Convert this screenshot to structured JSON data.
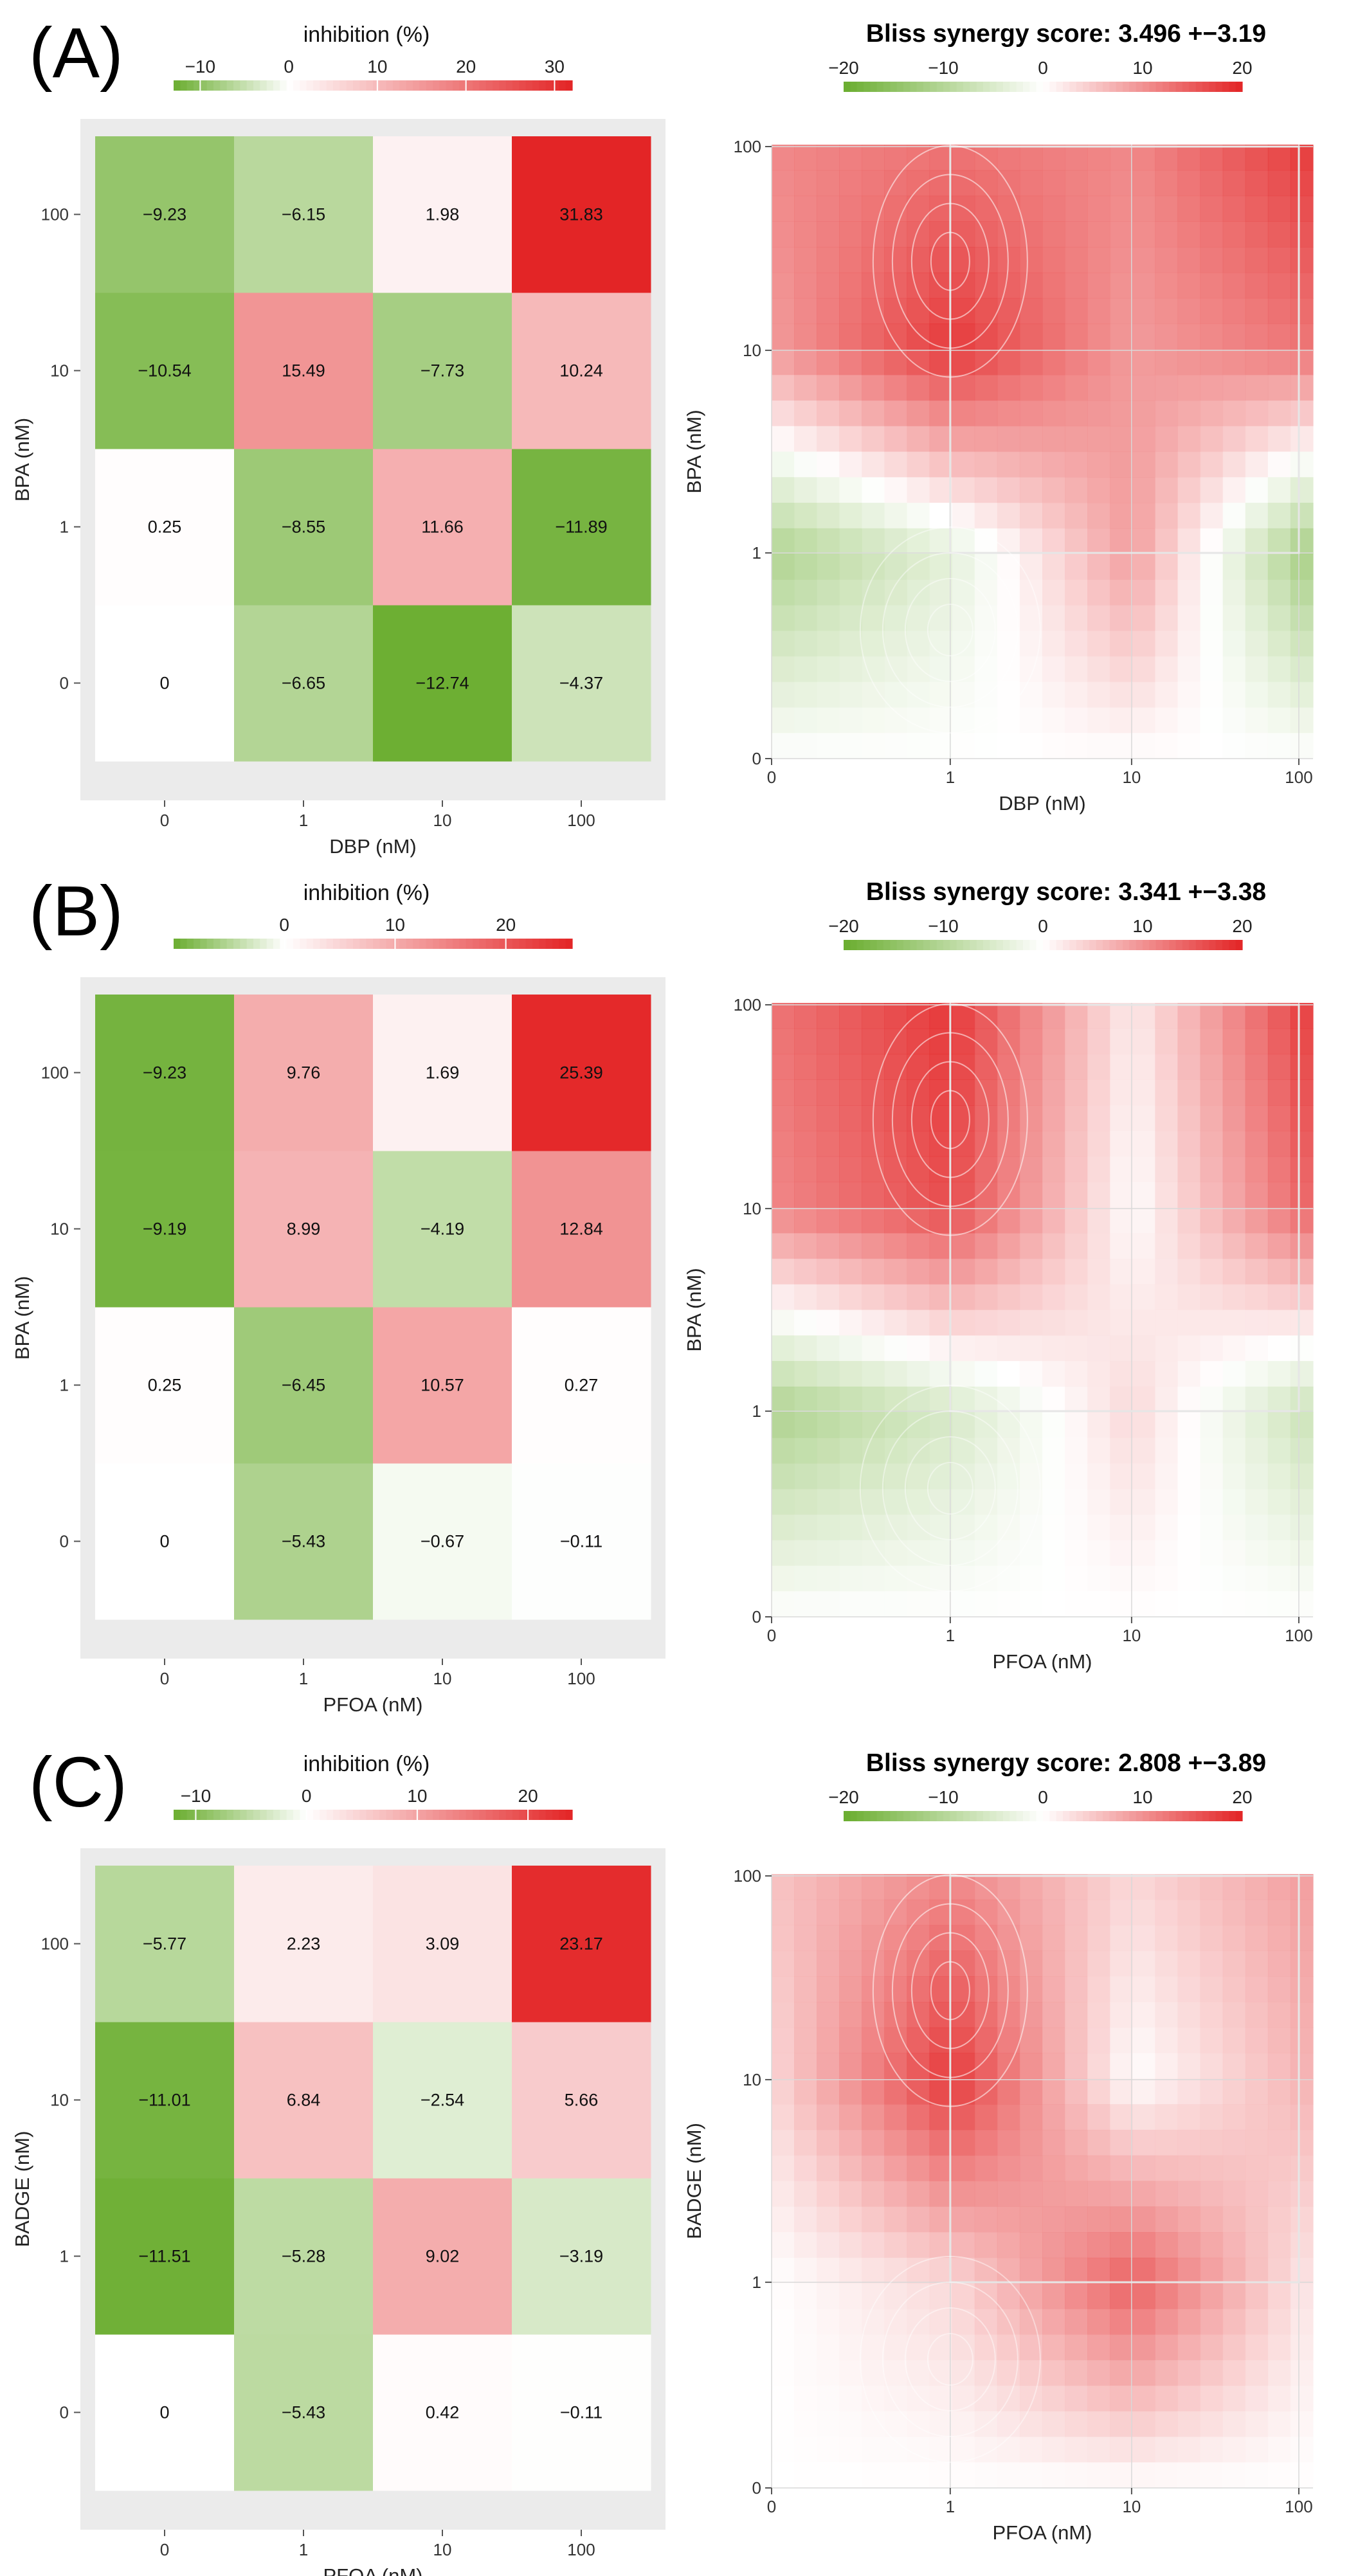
{
  "figure": {
    "panels": [
      "(A)",
      "(B)",
      "(C)"
    ]
  },
  "colors": {
    "negative": "#6aad2f",
    "zero": "#ffffff",
    "positive": "#e32425",
    "panel_background": "#ebebeb",
    "contour": "#ffffff"
  },
  "chart_data": [
    {
      "type": "heatmap",
      "panel": "(A)",
      "legend_title": "inhibition (%)",
      "legend_ticks": [
        "−10",
        "0",
        "10",
        "20",
        "30"
      ],
      "legend_range": [
        -13,
        32
      ],
      "xlabel": "DBP (nM)",
      "ylabel": "BPA (nM)",
      "x_categories": [
        "0",
        "1",
        "10",
        "100"
      ],
      "y_categories": [
        "0",
        "1",
        "10",
        "100"
      ],
      "values": [
        [
          0,
          -6.65,
          -12.74,
          -4.37
        ],
        [
          0.25,
          -8.55,
          11.66,
          -11.89
        ],
        [
          -10.54,
          15.49,
          -7.73,
          10.24
        ],
        [
          -9.23,
          -6.15,
          1.98,
          31.83
        ]
      ],
      "cell_labels": [
        [
          "0",
          "−6.65",
          "−12.74",
          "−4.37"
        ],
        [
          "0.25",
          "−8.55",
          "11.66",
          "−11.89"
        ],
        [
          "−10.54",
          "15.49",
          "−7.73",
          "10.24"
        ],
        [
          "−9.23",
          "−6.15",
          "1.98",
          "31.83"
        ]
      ],
      "color_scale": {
        "min": -13,
        "max": 32
      }
    },
    {
      "type": "heatmap",
      "panel": "(A)",
      "title": "Bliss synergy score: 3.496 +−3.19",
      "legend_ticks": [
        "−20",
        "−10",
        "0",
        "10",
        "20"
      ],
      "legend_range": [
        -20,
        20
      ],
      "xlabel": "DBP (nM)",
      "ylabel": "BPA (nM)",
      "x_ticks": [
        "0",
        "1",
        "10",
        "100"
      ],
      "y_ticks": [
        "0",
        "1",
        "10",
        "100"
      ],
      "synergy_grid": [
        [
          0,
          0,
          0,
          0
        ],
        [
          -12,
          -4,
          10,
          -14
        ],
        [
          10,
          20,
          10,
          14
        ],
        [
          12,
          14,
          12,
          20
        ]
      ],
      "color_scale": {
        "min": -20,
        "max": 20
      }
    },
    {
      "type": "heatmap",
      "panel": "(B)",
      "legend_title": "inhibition (%)",
      "legend_ticks": [
        "0",
        "10",
        "20"
      ],
      "legend_range": [
        -10,
        26
      ],
      "xlabel": "PFOA (nM)",
      "ylabel": "BPA (nM)",
      "x_categories": [
        "0",
        "1",
        "10",
        "100"
      ],
      "y_categories": [
        "0",
        "1",
        "10",
        "100"
      ],
      "values": [
        [
          0,
          -5.43,
          -0.67,
          -0.11
        ],
        [
          0.25,
          -6.45,
          10.57,
          0.27
        ],
        [
          -9.19,
          8.99,
          -4.19,
          12.84
        ],
        [
          -9.23,
          9.76,
          1.69,
          25.39
        ]
      ],
      "cell_labels": [
        [
          "0",
          "−5.43",
          "−0.67",
          "−0.11"
        ],
        [
          "0.25",
          "−6.45",
          "10.57",
          "0.27"
        ],
        [
          "−9.19",
          "8.99",
          "−4.19",
          "12.84"
        ],
        [
          "−9.23",
          "9.76",
          "1.69",
          "25.39"
        ]
      ],
      "color_scale": {
        "min": -10,
        "max": 26
      }
    },
    {
      "type": "heatmap",
      "panel": "(B)",
      "title": "Bliss synergy score: 3.341 +−3.38",
      "legend_ticks": [
        "−20",
        "−10",
        "0",
        "10",
        "20"
      ],
      "legend_range": [
        -20,
        20
      ],
      "xlabel": "PFOA (nM)",
      "ylabel": "BPA (nM)",
      "x_ticks": [
        "0",
        "1",
        "10",
        "100"
      ],
      "y_ticks": [
        "0",
        "1",
        "10",
        "100"
      ],
      "synergy_grid": [
        [
          0,
          0,
          0,
          0
        ],
        [
          -12,
          -6,
          4,
          -8
        ],
        [
          12,
          18,
          0,
          16
        ],
        [
          14,
          20,
          2,
          20
        ]
      ],
      "color_scale": {
        "min": -20,
        "max": 20
      }
    },
    {
      "type": "heatmap",
      "panel": "(C)",
      "legend_title": "inhibition (%)",
      "legend_ticks": [
        "−10",
        "0",
        "10",
        "20"
      ],
      "legend_range": [
        -12,
        24
      ],
      "xlabel": "PFOA (nM)",
      "ylabel": "BADGE (nM)",
      "x_categories": [
        "0",
        "1",
        "10",
        "100"
      ],
      "y_categories": [
        "0",
        "1",
        "10",
        "100"
      ],
      "values": [
        [
          0,
          -5.43,
          0.42,
          -0.11
        ],
        [
          -11.51,
          -5.28,
          9.02,
          -3.19
        ],
        [
          -11.01,
          6.84,
          -2.54,
          5.66
        ],
        [
          -5.77,
          2.23,
          3.09,
          23.17
        ]
      ],
      "cell_labels": [
        [
          "0",
          "−5.43",
          "0.42",
          "−0.11"
        ],
        [
          "−11.51",
          "−5.28",
          "9.02",
          "−3.19"
        ],
        [
          "−11.01",
          "6.84",
          "−2.54",
          "5.66"
        ],
        [
          "−5.77",
          "2.23",
          "3.09",
          "23.17"
        ]
      ],
      "color_scale": {
        "min": -12,
        "max": 24
      }
    },
    {
      "type": "heatmap",
      "panel": "(C)",
      "title": "Bliss synergy score: 2.808 +−3.89",
      "legend_ticks": [
        "−20",
        "−10",
        "0",
        "10",
        "20"
      ],
      "legend_range": [
        -20,
        20
      ],
      "xlabel": "PFOA (nM)",
      "ylabel": "BADGE (nM)",
      "x_ticks": [
        "0",
        "1",
        "10",
        "100"
      ],
      "y_ticks": [
        "0",
        "1",
        "10",
        "100"
      ],
      "synergy_grid": [
        [
          0,
          0,
          0,
          0
        ],
        [
          0,
          4,
          16,
          2
        ],
        [
          4,
          20,
          0,
          8
        ],
        [
          6,
          12,
          4,
          10
        ]
      ],
      "color_scale": {
        "min": -20,
        "max": 20
      }
    }
  ]
}
